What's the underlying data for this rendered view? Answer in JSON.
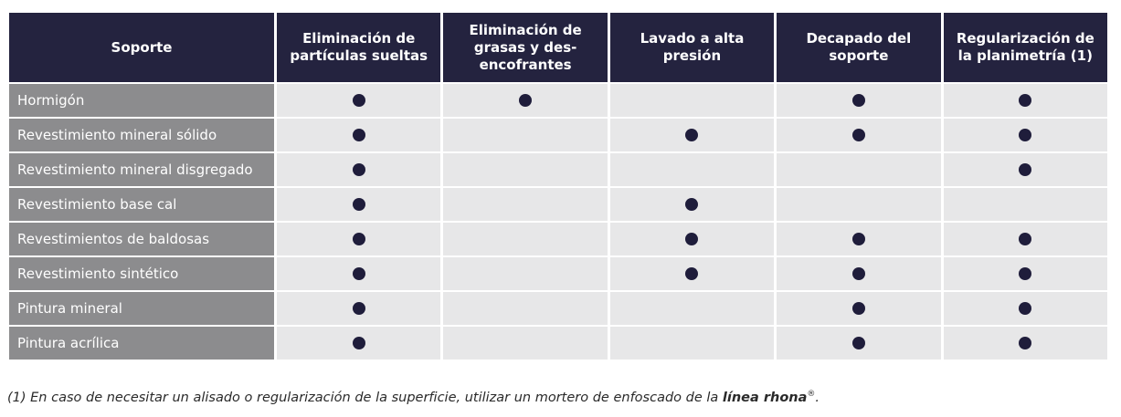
{
  "table": {
    "columns": [
      "Soporte",
      "Eliminación de partículas sueltas",
      "Eliminación de grasas y des-encofrantes",
      "Lavado a alta presión",
      "Decapado del soporte",
      "Regularización de la planimetría (1)"
    ],
    "rows": [
      {
        "label": "Hormigón",
        "cells": [
          true,
          true,
          false,
          true,
          true
        ]
      },
      {
        "label": "Revestimiento mineral sólido",
        "cells": [
          true,
          false,
          true,
          true,
          true
        ]
      },
      {
        "label": "Revestimiento mineral disgregado",
        "cells": [
          true,
          false,
          false,
          false,
          true
        ]
      },
      {
        "label": "Revestimiento base cal",
        "cells": [
          true,
          false,
          true,
          false,
          false
        ]
      },
      {
        "label": "Revestimientos de baldosas",
        "cells": [
          true,
          false,
          true,
          true,
          true
        ]
      },
      {
        "label": "Revestimiento sintético",
        "cells": [
          true,
          false,
          true,
          true,
          true
        ]
      },
      {
        "label": "Pintura mineral",
        "cells": [
          true,
          false,
          false,
          true,
          true
        ]
      },
      {
        "label": "Pintura acrílica",
        "cells": [
          true,
          false,
          false,
          true,
          true
        ]
      }
    ]
  },
  "footnote": {
    "text": "(1) En caso de necesitar un alisado o regularización de la superficie, utilizar un mortero de enfoscado de la ",
    "emphasis": "línea rhona",
    "mark": "®",
    "end": "."
  }
}
